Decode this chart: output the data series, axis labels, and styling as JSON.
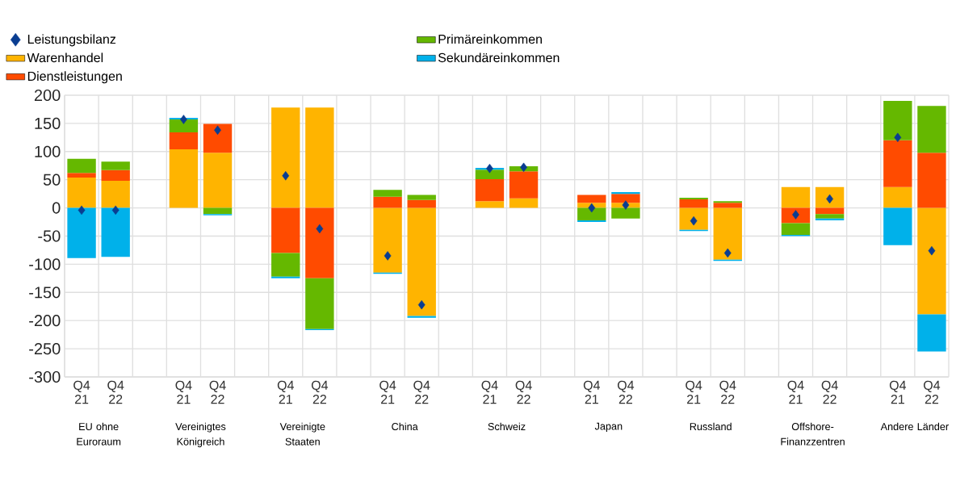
{
  "chart_data": {
    "type": "bar",
    "stacked": true,
    "grid": true,
    "legend": "top left",
    "marker": "diamond",
    "categories": [
      "Q4 21",
      "Q4 22",
      null,
      "Q4 21",
      "Q4 22",
      null,
      "Q4 21",
      "Q4 22",
      null,
      "Q4 21",
      "Q4 22",
      null,
      "Q4 21",
      "Q4 22",
      null,
      "Q4 21",
      "Q4 22",
      null,
      "Q4 21",
      "Q4 22",
      null,
      "Q4 21",
      "Q4 22",
      null,
      "Q4 21",
      "Q4 22"
    ],
    "ylim": [
      -300,
      200
    ],
    "yticks": [
      -300,
      -250,
      -200,
      -150,
      -100,
      -50,
      0,
      50,
      100,
      150,
      200
    ],
    "series": [
      {
        "name": "Leistungsbilanz",
        "type": "scatter",
        "color": "#0a3d91",
        "values": [
          -4,
          -4,
          null,
          157,
          138,
          null,
          57,
          -37,
          null,
          -85,
          -172,
          null,
          70,
          72,
          null,
          0,
          5,
          null,
          -23,
          -80,
          null,
          -12,
          16,
          null,
          125,
          -76
        ]
      },
      {
        "name": "Warenhandel",
        "color": "#ffb400",
        "values": [
          54,
          48,
          null,
          104,
          98,
          null,
          178,
          178,
          null,
          -115,
          -192,
          null,
          12,
          17,
          null,
          9,
          9,
          null,
          -39,
          -92,
          null,
          37,
          37,
          null,
          37,
          -189
        ]
      },
      {
        "name": "Dienstleistungen",
        "color": "#ff4b00",
        "values": [
          8,
          19,
          null,
          30,
          51,
          null,
          -80,
          -125,
          null,
          20,
          14,
          null,
          39,
          48,
          null,
          14,
          16,
          null,
          15,
          9,
          null,
          -27,
          -11,
          null,
          83,
          98
        ]
      },
      {
        "name": "Primäreinkommen",
        "color": "#65b800",
        "values": [
          25,
          15,
          null,
          23,
          -11,
          null,
          -42,
          -90,
          null,
          12,
          9,
          null,
          17,
          9,
          null,
          -22,
          -19,
          null,
          3,
          3,
          null,
          -21,
          -8,
          null,
          70,
          83
        ]
      },
      {
        "name": "Sekundäreinkommen",
        "color": "#00b1ea",
        "values": [
          -89,
          -87,
          null,
          3,
          -2,
          null,
          -3,
          -2,
          null,
          -2,
          -3,
          null,
          3,
          null,
          null,
          -3,
          3,
          null,
          -2,
          -2,
          null,
          -2,
          -3,
          null,
          -66,
          -66
        ]
      }
    ],
    "annotations": [
      "EU ohne Euroraum",
      "Vereinigtes Königreich",
      "Vereinigte Staaten",
      "China",
      "Schweiz",
      "Japan",
      "Russland",
      "Offshore-Finanzzentren",
      "Andere Länder"
    ]
  }
}
